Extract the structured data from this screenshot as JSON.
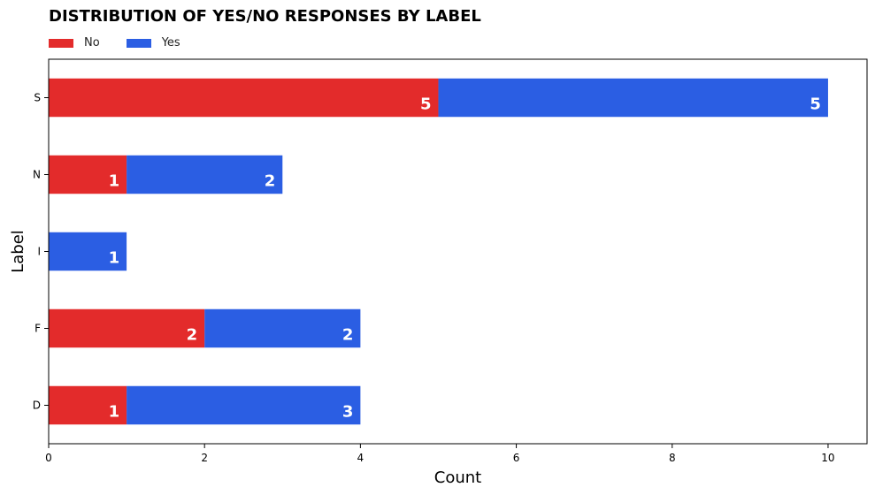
{
  "chart_data": {
    "type": "bar",
    "orientation": "horizontal",
    "stacked": true,
    "title": "DISTRIBUTION OF YES/NO RESPONSES BY LABEL",
    "xlabel": "Count",
    "ylabel": "Label",
    "categories": [
      "D",
      "F",
      "I",
      "N",
      "S"
    ],
    "series": [
      {
        "name": "No",
        "color": "#e32b2b",
        "values": [
          1,
          2,
          0,
          1,
          5
        ]
      },
      {
        "name": "Yes",
        "color": "#2b5ee3",
        "values": [
          3,
          2,
          1,
          2,
          5
        ]
      }
    ],
    "xlim": [
      0,
      10.5
    ],
    "xticks": [
      0,
      2,
      4,
      6,
      8,
      10
    ],
    "grid": false,
    "legend_position": "top-left"
  }
}
